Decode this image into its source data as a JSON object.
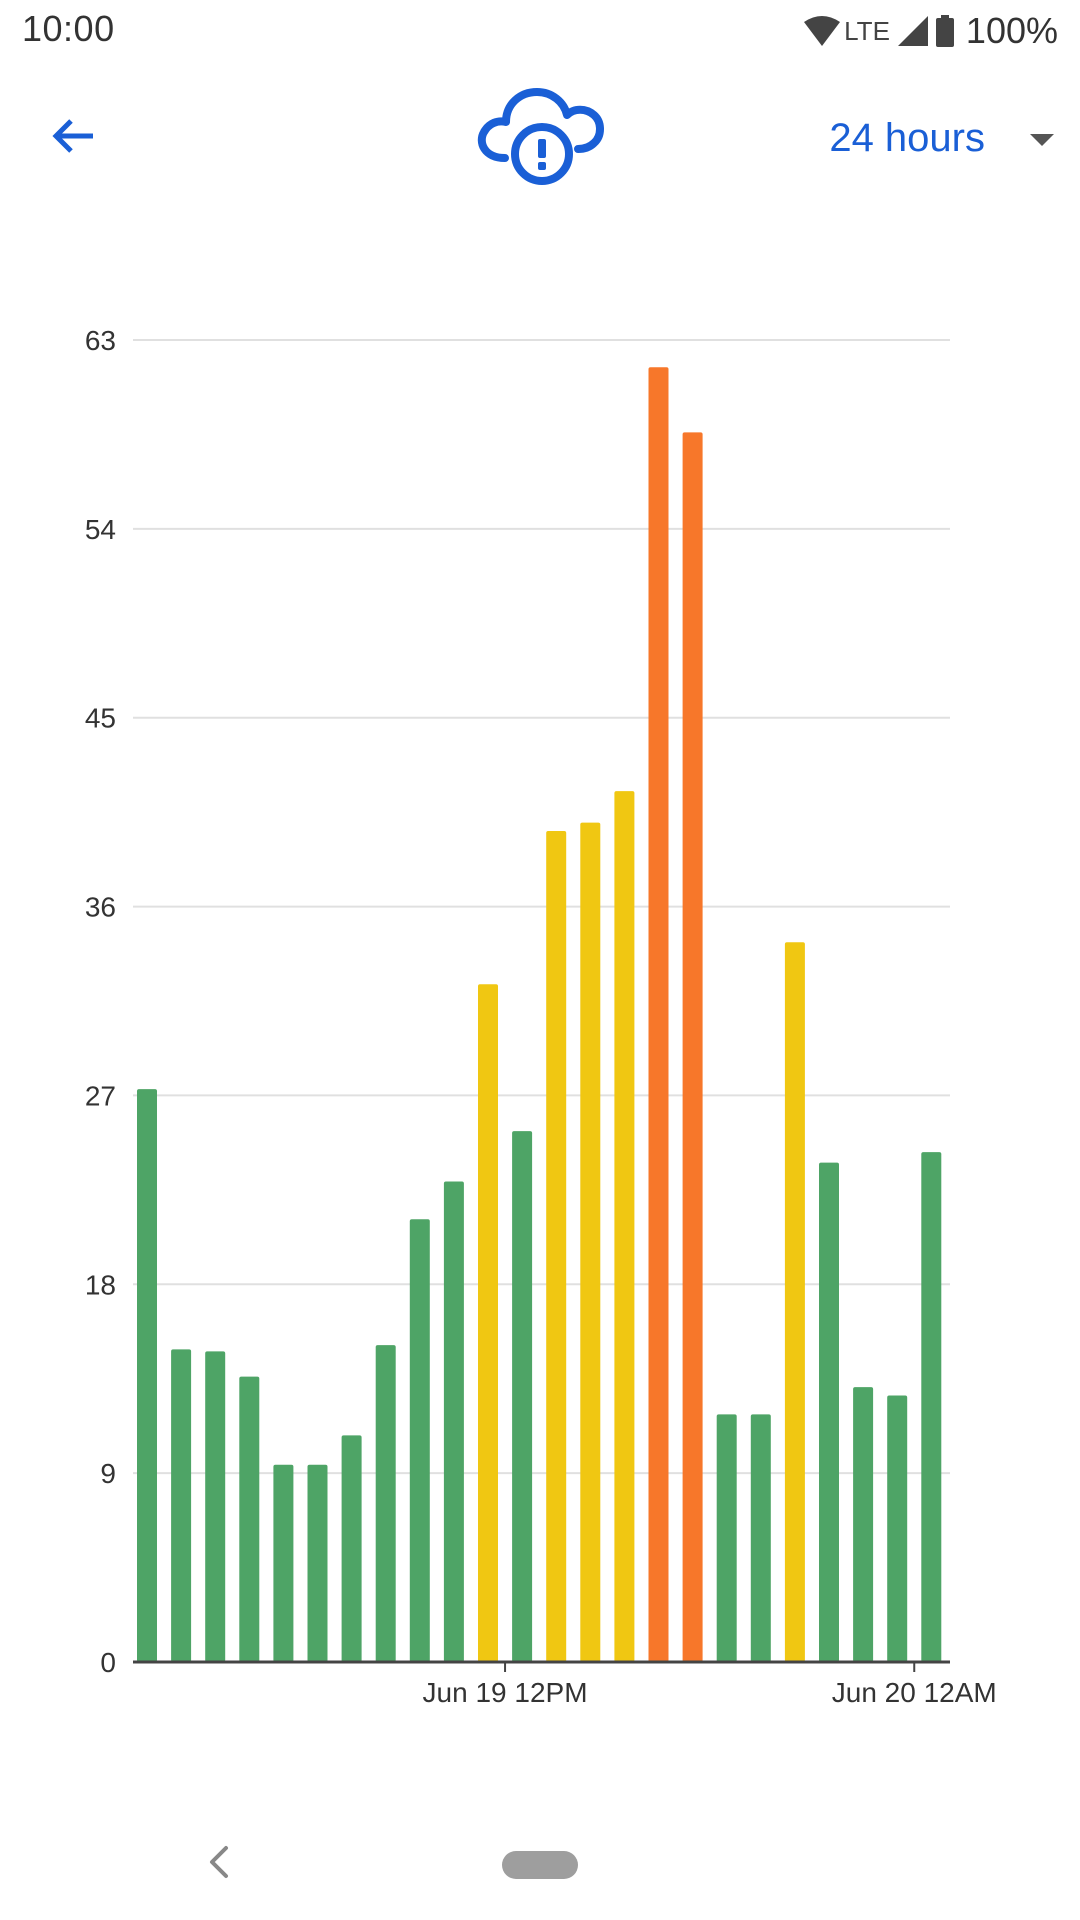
{
  "status_bar": {
    "time": "10:00",
    "network": "LTE",
    "battery": "100%",
    "icons": [
      "wifi-icon",
      "signal-icon",
      "battery-icon"
    ]
  },
  "app_bar": {
    "back_icon": "arrow-back-icon",
    "center_icon": "cloud-alert-icon",
    "range_label": "24 hours",
    "range_caret_icon": "dropdown-caret-icon",
    "accent_color": "#1a5fd6"
  },
  "chart_data": {
    "type": "bar",
    "title": "",
    "xlabel": "",
    "ylabel": "",
    "ylim": [
      0,
      63
    ],
    "y_ticks": [
      "0",
      "9",
      "18",
      "27",
      "36",
      "45",
      "54",
      "63"
    ],
    "x_tick_labels": [
      {
        "label": "Jun 19 12PM",
        "after_bar_index": 10
      },
      {
        "label": "Jun 20 12AM",
        "after_bar_index": 22
      }
    ],
    "grid": true,
    "values": [
      27.3,
      14.9,
      14.8,
      13.6,
      9.4,
      9.4,
      10.8,
      15.1,
      21.1,
      22.9,
      32.3,
      25.3,
      39.6,
      40.0,
      41.5,
      61.7,
      58.6,
      11.8,
      11.8,
      34.3,
      23.8,
      13.1,
      12.7,
      24.3
    ],
    "levels": [
      "good",
      "good",
      "good",
      "good",
      "good",
      "good",
      "good",
      "good",
      "good",
      "good",
      "moderate",
      "good",
      "moderate",
      "moderate",
      "moderate",
      "high",
      "high",
      "good",
      "good",
      "moderate",
      "good",
      "good",
      "good",
      "good"
    ],
    "level_colors": {
      "good": "#4ea466",
      "moderate": "#f0c712",
      "high": "#f7772a"
    }
  },
  "nav_bar": {
    "back_icon": "nav-back-icon",
    "home_icon": "nav-home-pill"
  }
}
